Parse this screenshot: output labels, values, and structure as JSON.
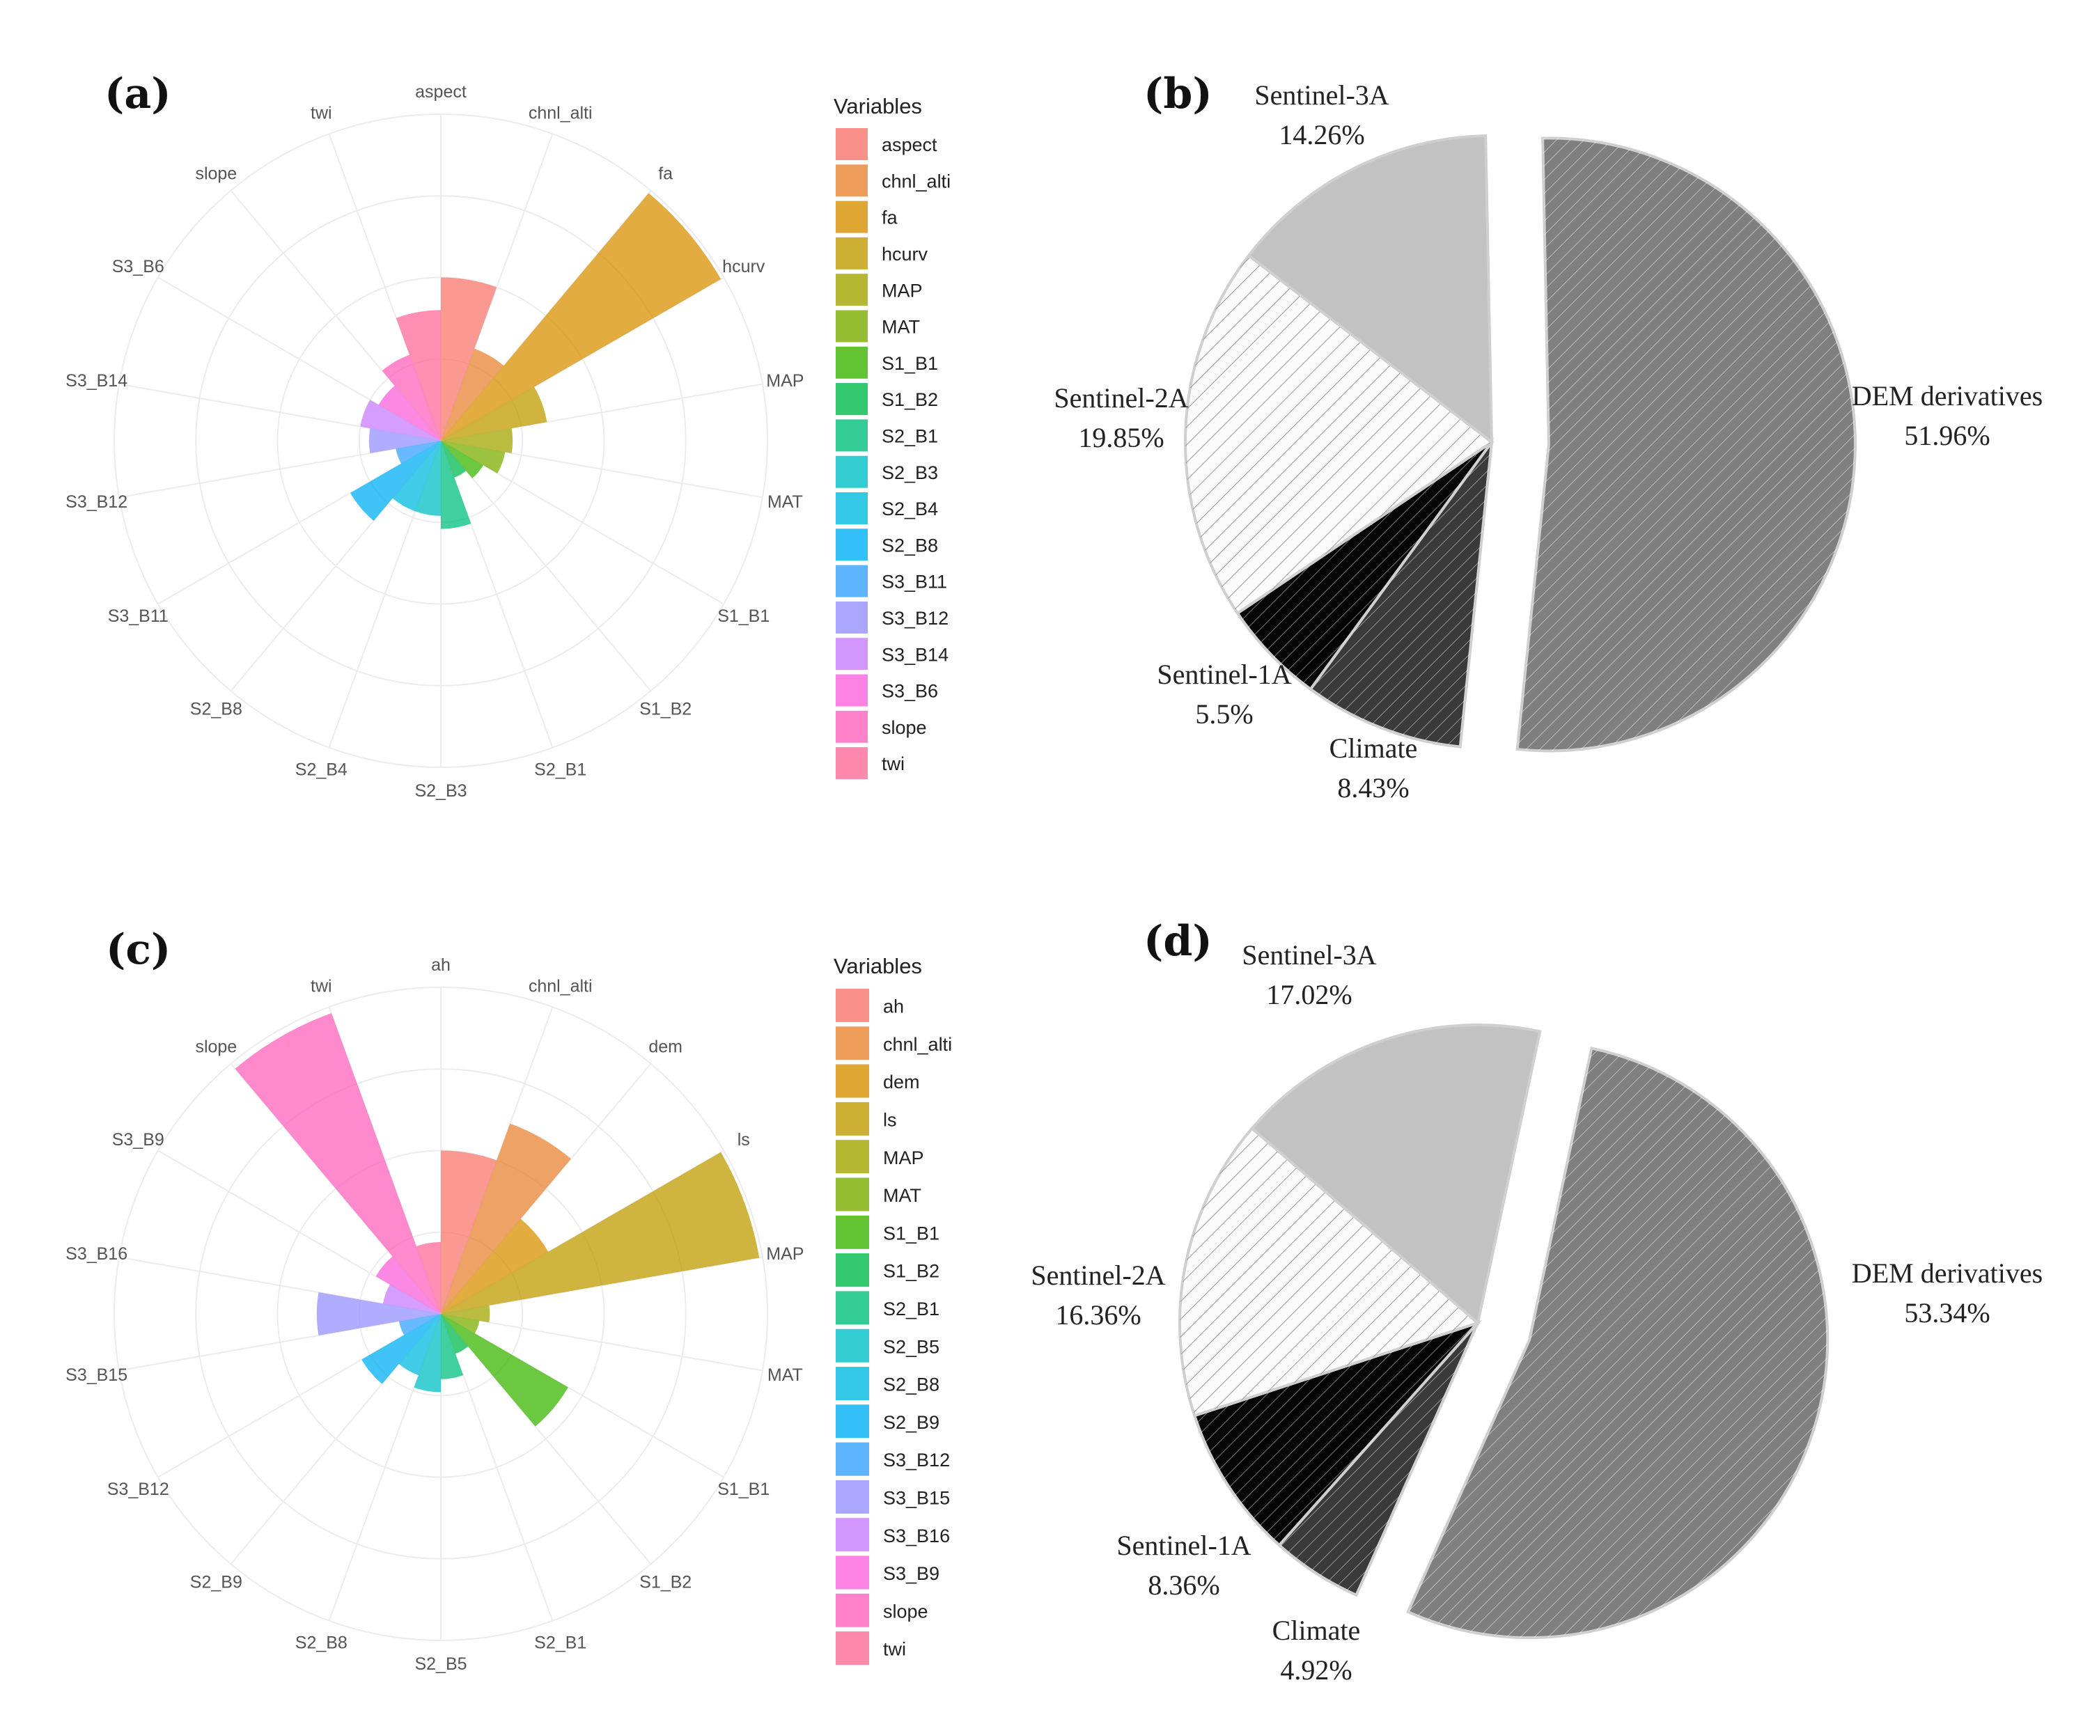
{
  "chart_data": [
    {
      "panel": "(a)",
      "type": "polar-bar",
      "legend_title": "Variables",
      "categories": [
        "aspect",
        "chnl_alti",
        "fa",
        "hcurv",
        "MAP",
        "MAT",
        "S1_B1",
        "S1_B2",
        "S2_B1",
        "S2_B3",
        "S2_B4",
        "S2_B8",
        "S3_B11",
        "S3_B12",
        "S3_B14",
        "S3_B6",
        "slope",
        "twi"
      ],
      "values": [
        0.5,
        0.3,
        0.99,
        0.33,
        0.22,
        0.2,
        0.15,
        0.12,
        0.27,
        0.23,
        0.23,
        0.32,
        0.14,
        0.22,
        0.25,
        0.22,
        0.28,
        0.4
      ],
      "colors": [
        "#F8766D",
        "#EA8331",
        "#D89000",
        "#C09B00",
        "#A3A500",
        "#7CAE00",
        "#39B600",
        "#00BB4E",
        "#00BF7D",
        "#00C1A3",
        "#00BFC4",
        "#00BAE0",
        "#00B0F6",
        "#35A2FF",
        "#9590FF",
        "#C77CFF",
        "#E76BF3",
        "#FA62DB",
        "#FF62BC",
        "#FF6A98"
      ],
      "color_index": [
        0,
        1,
        2,
        3,
        4,
        5,
        6,
        7,
        8,
        10,
        11,
        12,
        13,
        14,
        15,
        17,
        18,
        19
      ]
    },
    {
      "panel": "(b)",
      "type": "pie",
      "slices": [
        {
          "name": "DEM derivatives",
          "value": 51.96,
          "label": "51.96%",
          "fill": "#7f7f7f",
          "pattern": "dense"
        },
        {
          "name": "Climate",
          "value": 8.43,
          "label": "8.43%",
          "fill": "#3a3a3a",
          "pattern": "dense"
        },
        {
          "name": "Sentinel-1A",
          "value": 5.5,
          "label": "5.5%",
          "fill": "#050505",
          "pattern": "dense"
        },
        {
          "name": "Sentinel-2A",
          "value": 19.85,
          "label": "19.85%",
          "fill": "#fbfbfb",
          "pattern": "sparse"
        },
        {
          "name": "Sentinel-3A",
          "value": 14.26,
          "label": "14.26%",
          "fill": "#c2c2c2",
          "pattern": "none"
        }
      ]
    },
    {
      "panel": "(c)",
      "type": "polar-bar",
      "legend_title": "Variables",
      "categories": [
        "ah",
        "chnl_alti",
        "dem",
        "ls",
        "MAP",
        "MAT",
        "S1_B1",
        "S1_B2",
        "S2_B1",
        "S2_B5",
        "S2_B8",
        "S2_B9",
        "S3_B12",
        "S3_B15",
        "S3_B16",
        "S3_B9",
        "slope",
        "twi"
      ],
      "values": [
        0.5,
        0.62,
        0.38,
        0.99,
        0.15,
        0.12,
        0.45,
        0.13,
        0.2,
        0.24,
        0.2,
        0.28,
        0.13,
        0.38,
        0.18,
        0.23,
        0.98,
        0.22
      ],
      "colors": [
        "#F8766D",
        "#EA8331",
        "#D89000",
        "#C09B00",
        "#A3A500",
        "#7CAE00",
        "#39B600",
        "#00BB4E",
        "#00BF7D",
        "#00C1A3",
        "#00BFC4",
        "#00BAE0",
        "#00B0F6",
        "#35A2FF",
        "#9590FF",
        "#C77CFF",
        "#E76BF3",
        "#FA62DB",
        "#FF62BC",
        "#FF6A98"
      ],
      "color_index": [
        0,
        1,
        2,
        3,
        4,
        5,
        6,
        7,
        8,
        10,
        11,
        12,
        13,
        14,
        15,
        17,
        18,
        19
      ]
    },
    {
      "panel": "(d)",
      "type": "pie",
      "slices": [
        {
          "name": "DEM derivatives",
          "value": 53.34,
          "label": "53.34%",
          "fill": "#7f7f7f",
          "pattern": "dense"
        },
        {
          "name": "Climate",
          "value": 4.92,
          "label": "4.92%",
          "fill": "#3a3a3a",
          "pattern": "dense"
        },
        {
          "name": "Sentinel-1A",
          "value": 8.36,
          "label": "8.36%",
          "fill": "#050505",
          "pattern": "dense"
        },
        {
          "name": "Sentinel-2A",
          "value": 16.36,
          "label": "16.36%",
          "fill": "#fbfbfb",
          "pattern": "sparse"
        },
        {
          "name": "Sentinel-3A",
          "value": 17.02,
          "label": "17.02%",
          "fill": "#c2c2c2",
          "pattern": "none"
        }
      ]
    }
  ]
}
